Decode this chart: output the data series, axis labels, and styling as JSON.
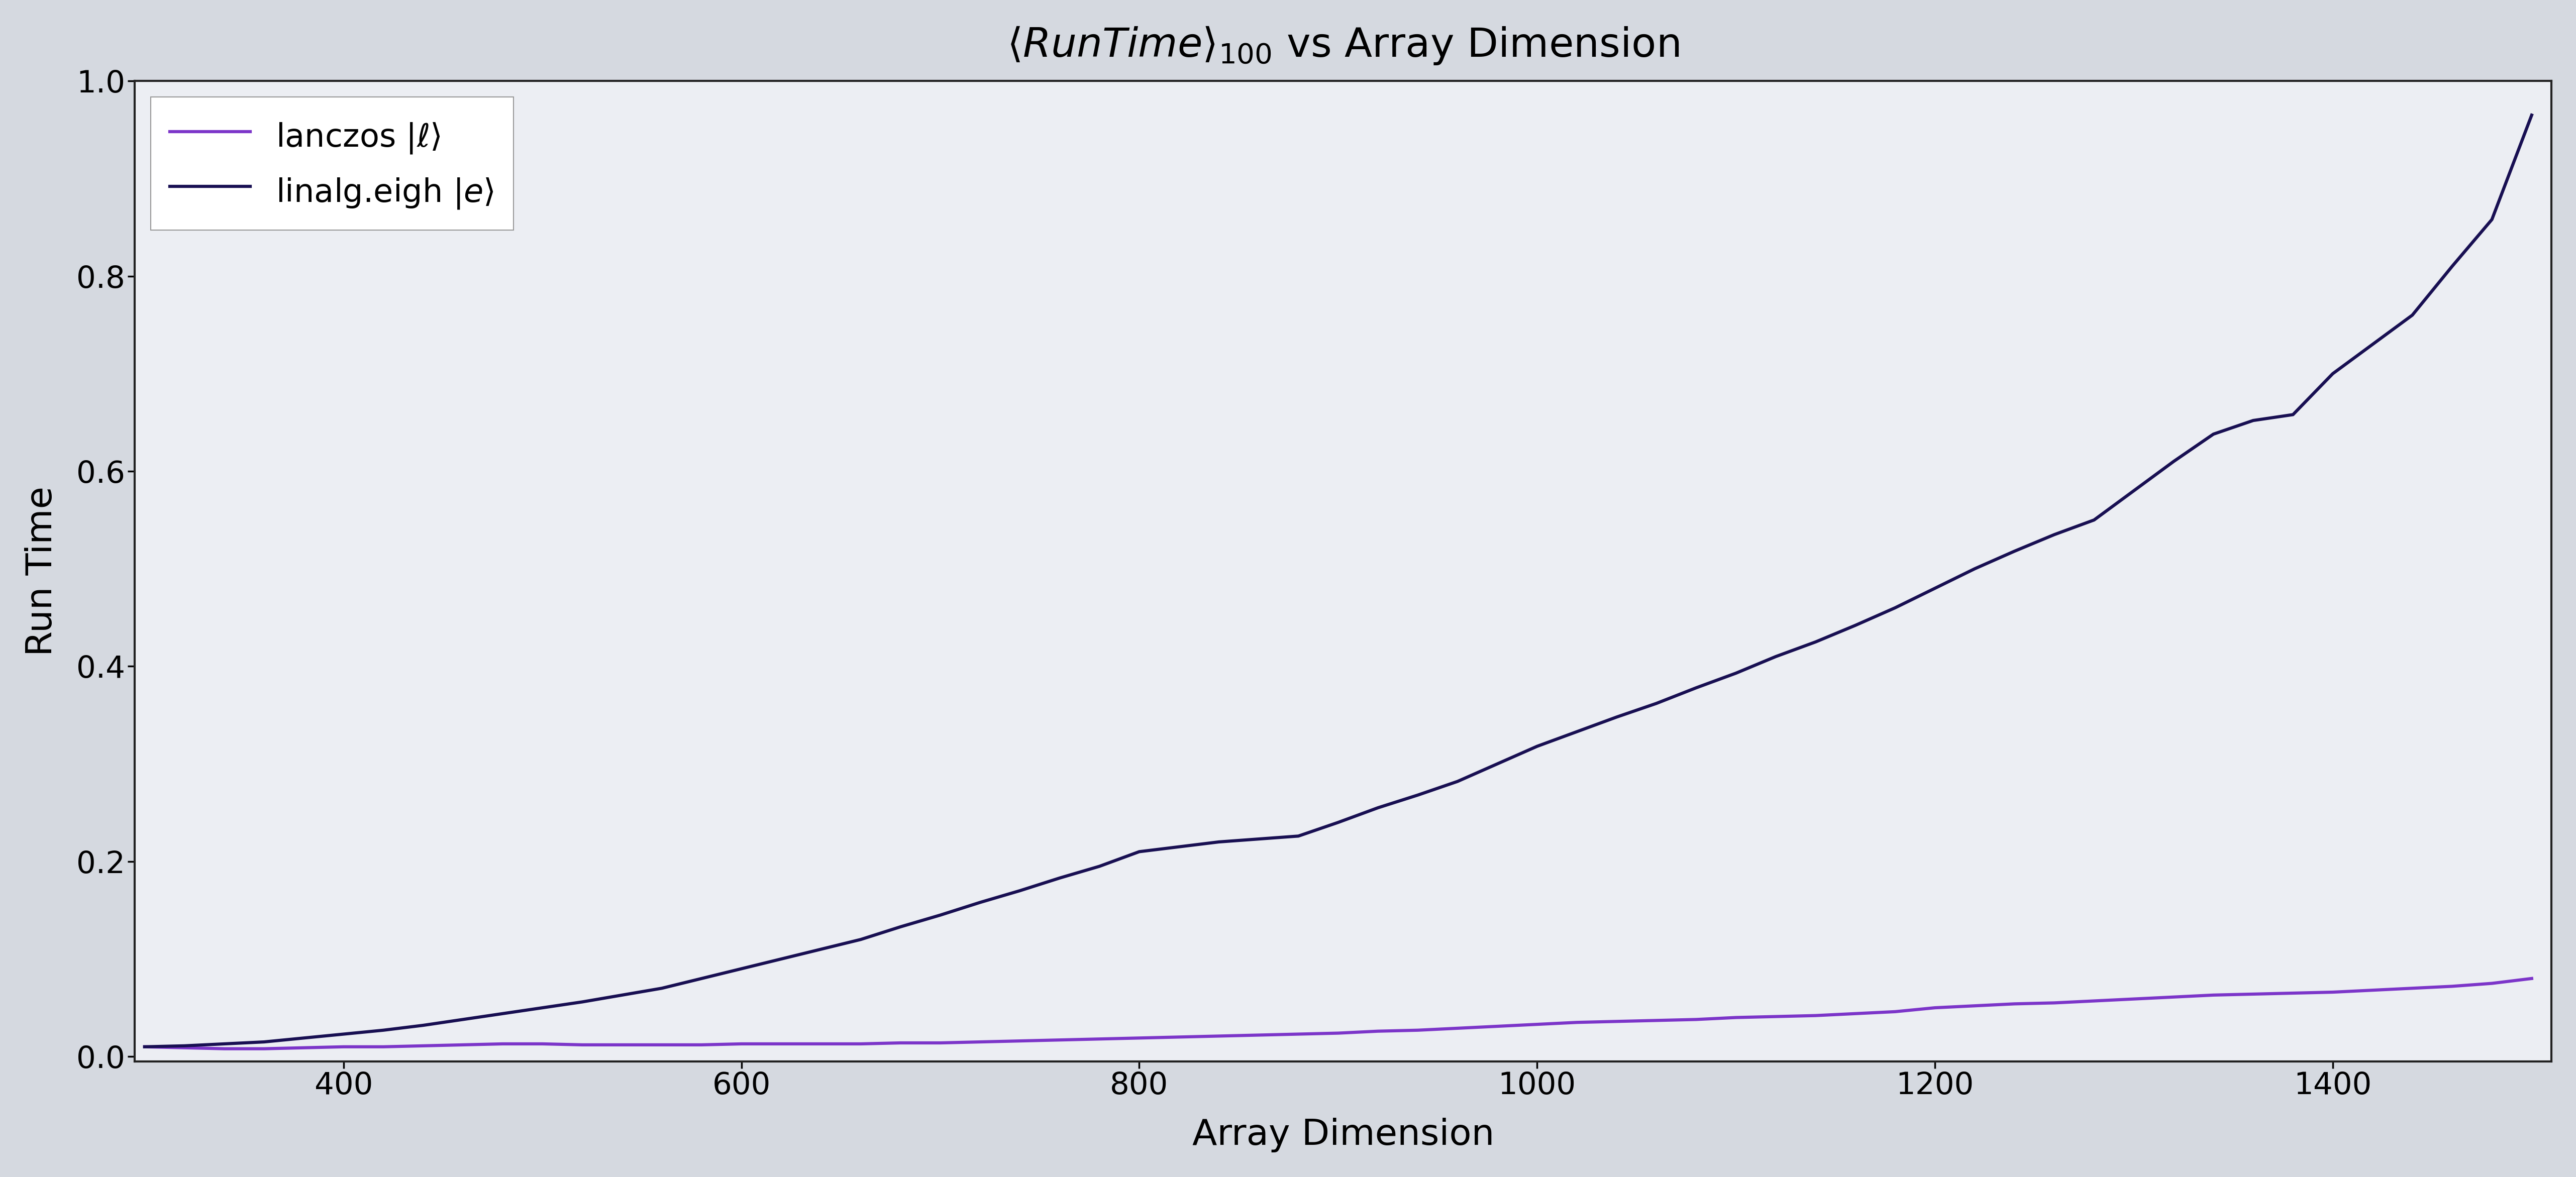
{
  "title": "$\\langle\\mathit{RunTime}\\rangle_{100}$ vs Array Dimension",
  "xlabel": "Array Dimension",
  "ylabel": "Run Time",
  "xlim": [
    295,
    1510
  ],
  "ylim": [
    -0.005,
    1.0
  ],
  "background_color": "#d5d9e0",
  "plot_bg_color": "#eceef3",
  "lanczos_color": "#7c35c9",
  "eigh_color": "#180f52",
  "legend_lanczos": "lanczos $|\\ell\\rangle$",
  "legend_eigh": "linalg.eigh $|e\\rangle$",
  "x": [
    300,
    320,
    340,
    360,
    380,
    400,
    420,
    440,
    460,
    480,
    500,
    520,
    540,
    560,
    580,
    600,
    620,
    640,
    660,
    680,
    700,
    720,
    740,
    760,
    780,
    800,
    820,
    840,
    860,
    880,
    900,
    920,
    940,
    960,
    980,
    1000,
    1020,
    1040,
    1060,
    1080,
    1100,
    1120,
    1140,
    1160,
    1180,
    1200,
    1220,
    1240,
    1260,
    1280,
    1300,
    1320,
    1340,
    1360,
    1380,
    1400,
    1420,
    1440,
    1460,
    1480,
    1500
  ],
  "y_lanczos": [
    0.01,
    0.009,
    0.008,
    0.008,
    0.009,
    0.01,
    0.01,
    0.011,
    0.012,
    0.013,
    0.013,
    0.012,
    0.012,
    0.012,
    0.012,
    0.013,
    0.013,
    0.013,
    0.013,
    0.014,
    0.014,
    0.015,
    0.016,
    0.017,
    0.018,
    0.019,
    0.02,
    0.021,
    0.022,
    0.023,
    0.024,
    0.026,
    0.027,
    0.029,
    0.031,
    0.033,
    0.035,
    0.036,
    0.037,
    0.038,
    0.04,
    0.041,
    0.042,
    0.044,
    0.046,
    0.05,
    0.052,
    0.054,
    0.055,
    0.057,
    0.059,
    0.061,
    0.063,
    0.064,
    0.065,
    0.066,
    0.068,
    0.07,
    0.072,
    0.075,
    0.08
  ],
  "y_eigh": [
    0.01,
    0.011,
    0.013,
    0.015,
    0.019,
    0.023,
    0.027,
    0.032,
    0.038,
    0.044,
    0.05,
    0.056,
    0.063,
    0.07,
    0.08,
    0.09,
    0.1,
    0.11,
    0.12,
    0.133,
    0.145,
    0.158,
    0.17,
    0.183,
    0.195,
    0.21,
    0.215,
    0.22,
    0.223,
    0.226,
    0.24,
    0.255,
    0.268,
    0.282,
    0.3,
    0.318,
    0.333,
    0.348,
    0.362,
    0.378,
    0.393,
    0.41,
    0.425,
    0.442,
    0.46,
    0.48,
    0.5,
    0.518,
    0.535,
    0.55,
    0.58,
    0.61,
    0.638,
    0.652,
    0.658,
    0.7,
    0.73,
    0.76,
    0.81,
    0.858,
    0.965
  ],
  "linewidth": 4.5
}
